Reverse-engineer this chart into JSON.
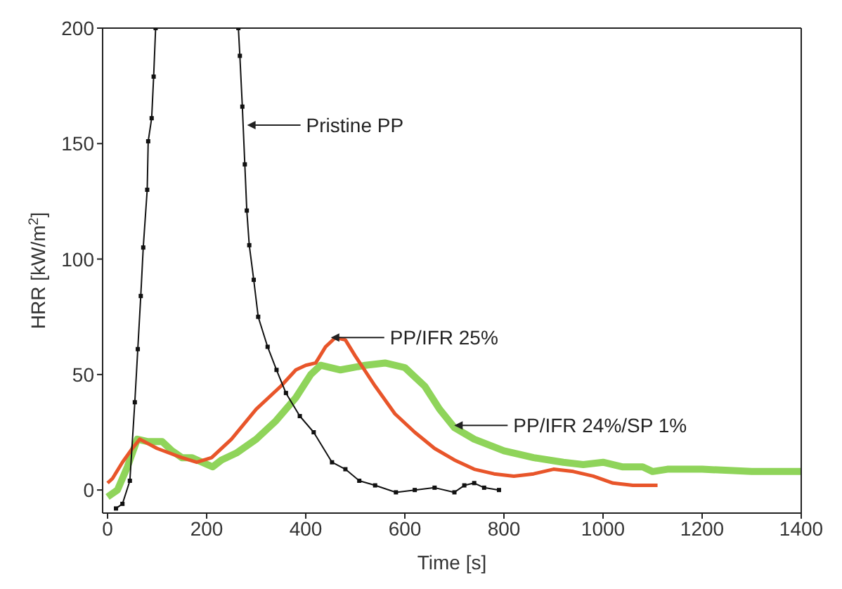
{
  "chart_data": {
    "type": "line",
    "xlabel": "Time [s]",
    "ylabel": "HRR [kW/m$^{2}$]",
    "xlim": [
      -10,
      1400
    ],
    "ylim": [
      -10,
      200
    ],
    "xticks": [
      0,
      200,
      400,
      600,
      800,
      1000,
      1200,
      1400
    ],
    "yticks": [
      0,
      50,
      100,
      150,
      200
    ],
    "line_style": "solid",
    "series": [
      {
        "color": "#111111",
        "marker": "square",
        "x": [
          17,
          30,
          45,
          55,
          61,
          67,
          72,
          80,
          82,
          89,
          93,
          97,
          180,
          264,
          267,
          272,
          277,
          281,
          286,
          295,
          304,
          323,
          341,
          360,
          388,
          416,
          453,
          480,
          508,
          540,
          582,
          620,
          660,
          700,
          720,
          740,
          760,
          790
        ],
        "values": [
          -8,
          -6,
          4,
          38,
          61,
          84,
          105,
          130,
          151,
          161,
          179,
          200,
          null,
          200,
          188,
          166,
          141,
          121,
          106,
          91,
          75,
          62,
          52,
          42,
          32,
          25,
          12,
          9,
          4,
          2,
          -1,
          0,
          1,
          -1,
          2,
          3,
          1,
          0
        ]
      },
      {
        "color": "#e8552a",
        "marker": "none",
        "x": [
          0,
          10,
          30,
          50,
          65,
          100,
          150,
          180,
          210,
          250,
          300,
          350,
          380,
          400,
          420,
          440,
          460,
          480,
          500,
          540,
          580,
          620,
          660,
          700,
          740,
          780,
          820,
          860,
          900,
          940,
          980,
          1020,
          1060,
          1110
        ],
        "values": [
          3,
          5,
          12,
          18,
          22,
          18,
          14,
          12,
          14,
          22,
          35,
          45,
          52,
          54,
          55,
          62,
          66,
          65,
          58,
          45,
          33,
          25,
          18,
          13,
          9,
          7,
          6,
          7,
          9,
          8,
          6,
          3,
          2,
          2
        ]
      },
      {
        "color": "#8fd45a",
        "marker": "none",
        "x": [
          0,
          20,
          40,
          60,
          80,
          110,
          130,
          150,
          170,
          212,
          230,
          260,
          300,
          340,
          380,
          410,
          430,
          470,
          520,
          560,
          600,
          640,
          670,
          700,
          740,
          800,
          860,
          920,
          960,
          1000,
          1040,
          1080,
          1100,
          1130,
          1200,
          1300,
          1400
        ],
        "values": [
          -3,
          0,
          10,
          22,
          21,
          21,
          17,
          14,
          14,
          10,
          13,
          16,
          22,
          30,
          40,
          50,
          54,
          52,
          54,
          55,
          53,
          45,
          35,
          27,
          22,
          17,
          14,
          12,
          11,
          12,
          10,
          10,
          8,
          9,
          9,
          8,
          8
        ]
      }
    ],
    "annotations": [
      {
        "text": "Pristine PP",
        "x": 276,
        "y": 158
      },
      {
        "text": "PP/IFR 25%",
        "x": 445,
        "y": 66
      },
      {
        "text": "PP/IFR 24%/SP 1%",
        "x": 694,
        "y": 28
      }
    ]
  }
}
